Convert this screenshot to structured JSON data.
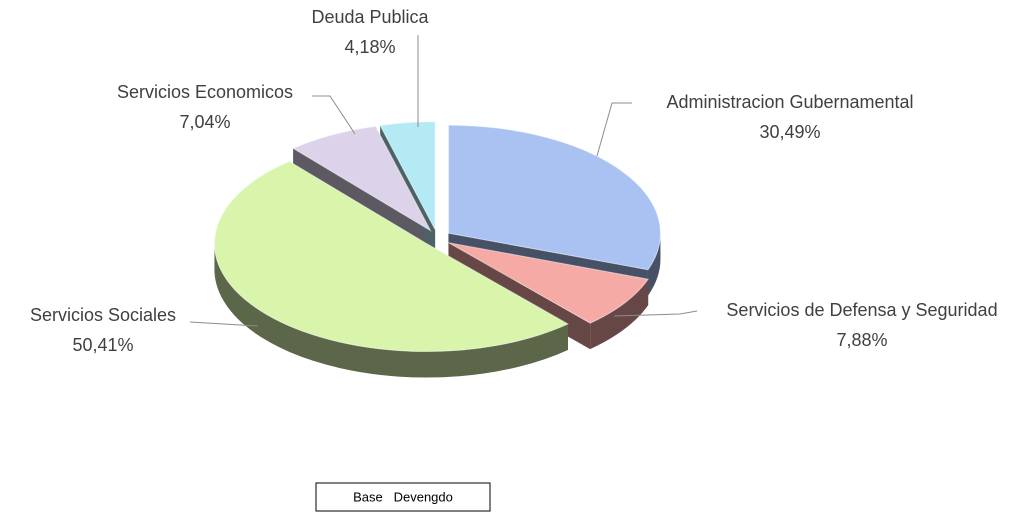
{
  "chart_data": {
    "type": "pie",
    "categories": [
      "Administracion Gubernamental",
      "Servicios de Defensa y Seguridad",
      "Servicios Sociales",
      "Servicios Economicos",
      "Deuda Publica"
    ],
    "values": [
      30.49,
      7.88,
      50.41,
      7.04,
      4.18
    ],
    "value_labels": [
      "30,49%",
      "7,88%",
      "50,41%",
      "7,04%",
      "4,18%"
    ],
    "colors": [
      "#a9c2f2",
      "#f5aaa6",
      "#d8f5ab",
      "#dcd3ea",
      "#b3eaf4"
    ],
    "annotation": "Base   Devengdo"
  }
}
